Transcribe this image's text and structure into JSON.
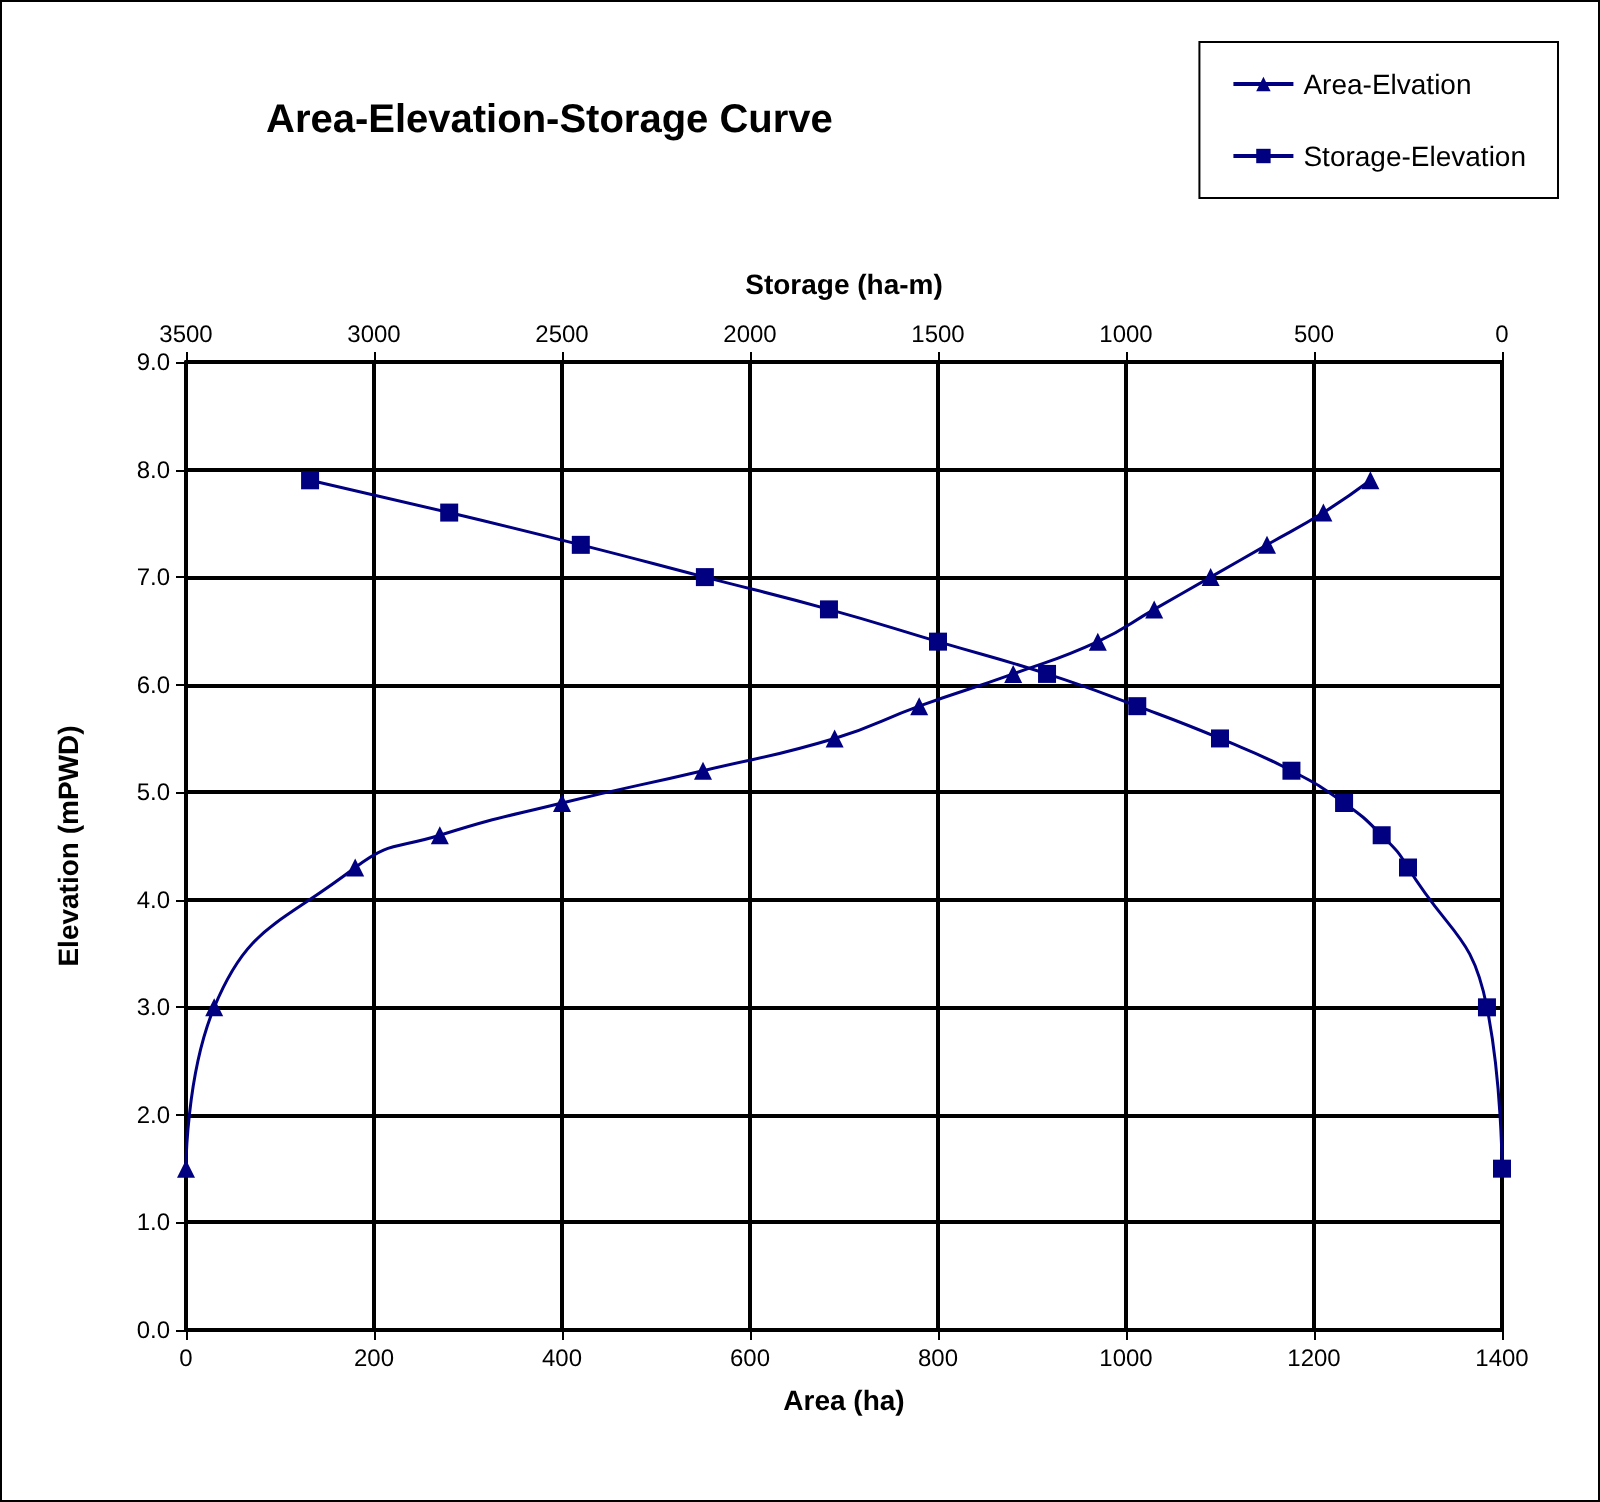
{
  "chart_data": {
    "type": "line",
    "title": "Area-Elevation-Storage Curve",
    "xlabel": "Area (ha)",
    "x2label": "Storage (ha-m)",
    "ylabel": "Elevation (mPWD)",
    "xlim": [
      0,
      1400
    ],
    "xticks": [
      0,
      200,
      400,
      600,
      800,
      1000,
      1200,
      1400
    ],
    "x2lim": [
      3500,
      0
    ],
    "x2ticks": [
      3500,
      3000,
      2500,
      2000,
      1500,
      1000,
      500,
      0
    ],
    "ylim": [
      0,
      9
    ],
    "yticks": [
      {
        "value": 0,
        "label": "0.0"
      },
      {
        "value": 1,
        "label": "1.0"
      },
      {
        "value": 2,
        "label": "2.0"
      },
      {
        "value": 3,
        "label": "3.0"
      },
      {
        "value": 4,
        "label": "4.0"
      },
      {
        "value": 5,
        "label": "5.0"
      },
      {
        "value": 6,
        "label": "6.0"
      },
      {
        "value": 7,
        "label": "7.0"
      },
      {
        "value": 8,
        "label": "8.0"
      },
      {
        "value": 9,
        "label": "9.0"
      }
    ],
    "grid": true,
    "legend": "top right",
    "line_style": "solid",
    "series": [
      {
        "name": "Area-Elvation",
        "color": "#000080",
        "marker": "triangle",
        "x": [
          0,
          30,
          180,
          270,
          400,
          550,
          690,
          780,
          880,
          970,
          1030,
          1090,
          1150,
          1210,
          1260
        ],
        "values": [
          1.5,
          3.0,
          4.3,
          4.6,
          4.9,
          5.2,
          5.5,
          5.8,
          6.1,
          6.4,
          6.7,
          7.0,
          7.3,
          7.6,
          7.9
        ]
      },
      {
        "name": "Storage-Elevation",
        "color": "#000080",
        "marker": "square",
        "axis": "x2",
        "x": [
          0,
          40,
          250,
          320,
          420,
          560,
          750,
          970,
          1210,
          1500,
          1790,
          2120,
          2450,
          2800,
          3170
        ],
        "values": [
          1.5,
          3.0,
          4.3,
          4.6,
          4.9,
          5.2,
          5.5,
          5.8,
          6.1,
          6.4,
          6.7,
          7.0,
          7.3,
          7.6,
          7.9
        ]
      }
    ]
  }
}
